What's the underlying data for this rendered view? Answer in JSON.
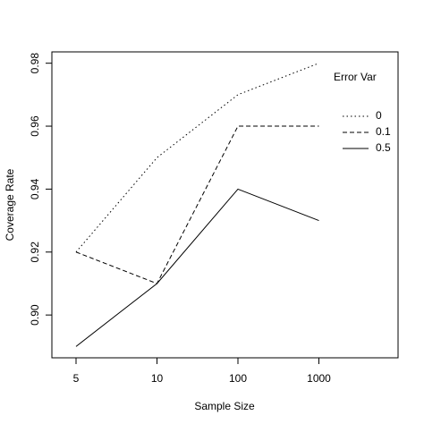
{
  "chart_data": {
    "type": "line",
    "x_label": "Sample Size",
    "y_label": "Coverage Rate",
    "legend_title": "Error Var",
    "categories": [
      "5",
      "10",
      "100",
      "1000"
    ],
    "series": [
      {
        "name": "0",
        "color": "#000000",
        "dash": "dotted",
        "values": [
          0.92,
          0.95,
          0.97,
          0.98
        ]
      },
      {
        "name": "0.1",
        "color": "#000000",
        "dash": "dashed",
        "values": [
          0.92,
          0.91,
          0.96,
          0.96
        ]
      },
      {
        "name": "0.5",
        "color": "#000000",
        "dash": "solid",
        "values": [
          0.89,
          0.91,
          0.94,
          0.93
        ]
      }
    ],
    "ylim": [
      0.8864,
      0.9836
    ],
    "yticks": [
      {
        "value": 0.9,
        "label": "0.90"
      },
      {
        "value": 0.92,
        "label": "0.92"
      },
      {
        "value": 0.94,
        "label": "0.94"
      },
      {
        "value": 0.96,
        "label": "0.96"
      },
      {
        "value": 0.98,
        "label": "0.98"
      }
    ],
    "legend": "top-right",
    "grid": false
  }
}
